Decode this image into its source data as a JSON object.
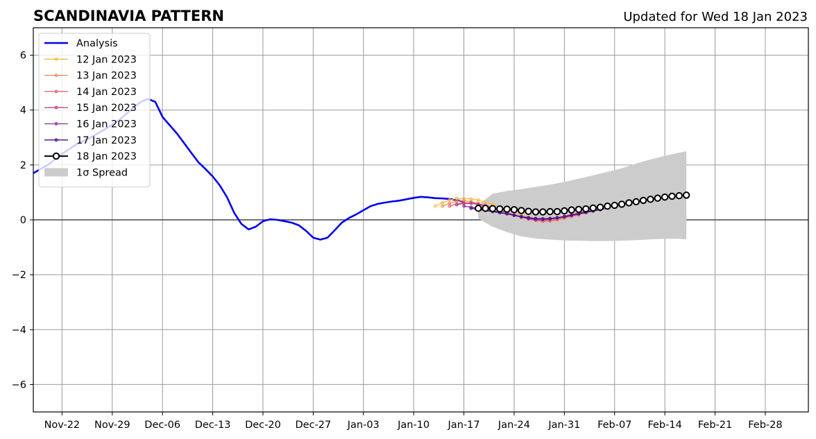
{
  "chart_data": {
    "type": "line",
    "title": "SCANDINAVIA PATTERN",
    "subtitle": "Updated for Wed 18 Jan 2023",
    "xlabel": "",
    "ylabel": "",
    "xlim": [
      "2022-11-18",
      "2023-03-06"
    ],
    "ylim": [
      -7,
      7
    ],
    "grid": true,
    "legend_position": "top-left",
    "x_tick_labels": [
      "Nov-22",
      "Nov-29",
      "Dec-06",
      "Dec-13",
      "Dec-20",
      "Dec-27",
      "Jan-03",
      "Jan-10",
      "Jan-17",
      "Jan-24",
      "Jan-31",
      "Feb-07",
      "Feb-14",
      "Feb-21",
      "Feb-28"
    ],
    "x_tick_dates": [
      "2022-11-22",
      "2022-11-29",
      "2022-12-06",
      "2022-12-13",
      "2022-12-20",
      "2022-12-27",
      "2023-01-03",
      "2023-01-10",
      "2023-01-17",
      "2023-01-24",
      "2023-01-31",
      "2023-02-07",
      "2023-02-14",
      "2023-02-21",
      "2023-02-28"
    ],
    "y_ticks": [
      -6,
      -4,
      -2,
      0,
      2,
      4,
      6
    ],
    "y_tick_labels": [
      "−6",
      "−4",
      "−2",
      "0",
      "2",
      "4",
      "6"
    ],
    "analysis": {
      "name": "Analysis",
      "color": "#0000ee",
      "x": [
        "2022-11-18",
        "2022-11-20",
        "2022-11-22",
        "2022-11-24",
        "2022-11-26",
        "2022-11-28",
        "2022-11-30",
        "2022-12-02",
        "2022-12-03",
        "2022-12-04",
        "2022-12-05",
        "2022-12-06",
        "2022-12-07",
        "2022-12-08",
        "2022-12-09",
        "2022-12-10",
        "2022-12-11",
        "2022-12-12",
        "2022-12-13",
        "2022-12-14",
        "2022-12-15",
        "2022-12-16",
        "2022-12-17",
        "2022-12-18",
        "2022-12-19",
        "2022-12-20",
        "2022-12-21",
        "2022-12-22",
        "2022-12-23",
        "2022-12-24",
        "2022-12-25",
        "2022-12-26",
        "2022-12-27",
        "2022-12-28",
        "2022-12-29",
        "2022-12-30",
        "2022-12-31",
        "2023-01-01",
        "2023-01-02",
        "2023-01-03",
        "2023-01-04",
        "2023-01-05",
        "2023-01-06",
        "2023-01-07",
        "2023-01-08",
        "2023-01-09",
        "2023-01-10",
        "2023-01-11",
        "2023-01-12",
        "2023-01-13",
        "2023-01-14",
        "2023-01-15",
        "2023-01-16",
        "2023-01-17"
      ],
      "y": [
        1.7,
        2.0,
        2.4,
        2.75,
        3.0,
        3.3,
        3.65,
        4.1,
        4.3,
        4.4,
        4.3,
        3.75,
        3.45,
        3.15,
        2.8,
        2.45,
        2.1,
        1.85,
        1.58,
        1.25,
        0.82,
        0.25,
        -0.15,
        -0.35,
        -0.25,
        -0.05,
        0.02,
        0.0,
        -0.05,
        -0.1,
        -0.2,
        -0.4,
        -0.65,
        -0.72,
        -0.65,
        -0.38,
        -0.1,
        0.07,
        0.2,
        0.35,
        0.5,
        0.58,
        0.63,
        0.67,
        0.7,
        0.75,
        0.8,
        0.84,
        0.82,
        0.79,
        0.78,
        0.76,
        0.72,
        0.65
      ]
    },
    "spread": {
      "name": "1σ Spread",
      "color": "#cccccc",
      "x": [
        "2023-01-19",
        "2023-01-21",
        "2023-01-23",
        "2023-01-25",
        "2023-01-27",
        "2023-01-29",
        "2023-01-31",
        "2023-02-02",
        "2023-02-04",
        "2023-02-06",
        "2023-02-08",
        "2023-02-10",
        "2023-02-12",
        "2023-02-14",
        "2023-02-16",
        "2023-02-17"
      ],
      "upper": [
        0.55,
        0.95,
        1.05,
        1.12,
        1.2,
        1.28,
        1.38,
        1.5,
        1.62,
        1.75,
        1.88,
        2.05,
        2.2,
        2.33,
        2.45,
        2.5
      ],
      "lower": [
        0.05,
        -0.25,
        -0.45,
        -0.6,
        -0.68,
        -0.72,
        -0.75,
        -0.76,
        -0.77,
        -0.77,
        -0.76,
        -0.74,
        -0.71,
        -0.69,
        -0.69,
        -0.72
      ]
    },
    "series": [
      {
        "name": "12 Jan 2023",
        "color": "#f5b942",
        "x": [
          "2023-01-13",
          "2023-01-14",
          "2023-01-15",
          "2023-01-16",
          "2023-01-17",
          "2023-01-18",
          "2023-01-19",
          "2023-01-20",
          "2023-01-21",
          "2023-01-22",
          "2023-01-23",
          "2023-01-24",
          "2023-01-25",
          "2023-01-26",
          "2023-01-27",
          "2023-01-28",
          "2023-01-29",
          "2023-01-30",
          "2023-01-31",
          "2023-02-01"
        ],
        "y": [
          0.5,
          0.62,
          0.72,
          0.78,
          0.78,
          0.76,
          0.72,
          0.64,
          0.56,
          0.46,
          0.36,
          0.26,
          0.18,
          0.1,
          0.04,
          0.0,
          0.0,
          0.04,
          0.1,
          0.16
        ]
      },
      {
        "name": "13 Jan 2023",
        "color": "#ef8a4a",
        "x": [
          "2023-01-14",
          "2023-01-15",
          "2023-01-16",
          "2023-01-17",
          "2023-01-18",
          "2023-01-19",
          "2023-01-20",
          "2023-01-21",
          "2023-01-22",
          "2023-01-23",
          "2023-01-24",
          "2023-01-25",
          "2023-01-26",
          "2023-01-27",
          "2023-01-28",
          "2023-01-29",
          "2023-01-30",
          "2023-01-31",
          "2023-02-01",
          "2023-02-02"
        ],
        "y": [
          0.5,
          0.6,
          0.68,
          0.7,
          0.66,
          0.6,
          0.52,
          0.44,
          0.35,
          0.26,
          0.18,
          0.1,
          0.03,
          -0.02,
          -0.05,
          -0.04,
          0.0,
          0.06,
          0.12,
          0.18
        ]
      },
      {
        "name": "14 Jan 2023",
        "color": "#e05a70",
        "x": [
          "2023-01-15",
          "2023-01-16",
          "2023-01-17",
          "2023-01-18",
          "2023-01-19",
          "2023-01-20",
          "2023-01-21",
          "2023-01-22",
          "2023-01-23",
          "2023-01-24",
          "2023-01-25",
          "2023-01-26",
          "2023-01-27",
          "2023-01-28",
          "2023-01-29",
          "2023-01-30",
          "2023-01-31",
          "2023-02-01",
          "2023-02-02",
          "2023-02-03"
        ],
        "y": [
          0.5,
          0.58,
          0.62,
          0.62,
          0.58,
          0.52,
          0.44,
          0.35,
          0.27,
          0.18,
          0.1,
          0.03,
          -0.02,
          -0.04,
          -0.03,
          0.02,
          0.08,
          0.14,
          0.2,
          0.26
        ]
      },
      {
        "name": "15 Jan 2023",
        "color": "#b8458a",
        "x": [
          "2023-01-16",
          "2023-01-17",
          "2023-01-18",
          "2023-01-19",
          "2023-01-20",
          "2023-01-21",
          "2023-01-22",
          "2023-01-23",
          "2023-01-24",
          "2023-01-25",
          "2023-01-26",
          "2023-01-27",
          "2023-01-28",
          "2023-01-29",
          "2023-01-30",
          "2023-01-31",
          "2023-02-01",
          "2023-02-02",
          "2023-02-03",
          "2023-02-04"
        ],
        "y": [
          0.55,
          0.6,
          0.6,
          0.56,
          0.5,
          0.42,
          0.34,
          0.26,
          0.18,
          0.11,
          0.05,
          0.01,
          0.0,
          0.02,
          0.07,
          0.13,
          0.19,
          0.25,
          0.31,
          0.36
        ]
      },
      {
        "name": "16 Jan 2023",
        "color": "#8a2a9a",
        "x": [
          "2023-01-17",
          "2023-01-18",
          "2023-01-19",
          "2023-01-20",
          "2023-01-21",
          "2023-01-22",
          "2023-01-23",
          "2023-01-24",
          "2023-01-25",
          "2023-01-26",
          "2023-01-27",
          "2023-01-28",
          "2023-01-29",
          "2023-01-30",
          "2023-01-31",
          "2023-02-01",
          "2023-02-02",
          "2023-02-03",
          "2023-02-04",
          "2023-02-05"
        ],
        "y": [
          0.5,
          0.46,
          0.42,
          0.38,
          0.33,
          0.28,
          0.22,
          0.16,
          0.1,
          0.05,
          0.02,
          0.01,
          0.03,
          0.07,
          0.12,
          0.17,
          0.23,
          0.29,
          0.34,
          0.39
        ]
      },
      {
        "name": "17 Jan 2023",
        "color": "#4a0a8a",
        "x": [
          "2023-01-18",
          "2023-01-19",
          "2023-01-20",
          "2023-01-21",
          "2023-01-22",
          "2023-01-23",
          "2023-01-24",
          "2023-01-25",
          "2023-01-26",
          "2023-01-27",
          "2023-01-28",
          "2023-01-29",
          "2023-01-30",
          "2023-01-31",
          "2023-02-01",
          "2023-02-02",
          "2023-02-03",
          "2023-02-04",
          "2023-02-05",
          "2023-02-06"
        ],
        "y": [
          0.42,
          0.38,
          0.34,
          0.3,
          0.26,
          0.22,
          0.17,
          0.12,
          0.08,
          0.05,
          0.04,
          0.05,
          0.08,
          0.12,
          0.17,
          0.22,
          0.27,
          0.32,
          0.37,
          0.43
        ]
      },
      {
        "name": "18 Jan 2023",
        "color": "#000000",
        "x": [
          "2023-01-19",
          "2023-01-20",
          "2023-01-21",
          "2023-01-22",
          "2023-01-23",
          "2023-01-24",
          "2023-01-25",
          "2023-01-26",
          "2023-01-27",
          "2023-01-28",
          "2023-01-29",
          "2023-01-30",
          "2023-01-31",
          "2023-02-01",
          "2023-02-02",
          "2023-02-03",
          "2023-02-04",
          "2023-02-05",
          "2023-02-06",
          "2023-02-07",
          "2023-02-08",
          "2023-02-09",
          "2023-02-10",
          "2023-02-11",
          "2023-02-12",
          "2023-02-13",
          "2023-02-14",
          "2023-02-15",
          "2023-02-16",
          "2023-02-17"
        ],
        "y": [
          0.42,
          0.42,
          0.41,
          0.4,
          0.39,
          0.37,
          0.34,
          0.31,
          0.29,
          0.29,
          0.3,
          0.3,
          0.33,
          0.36,
          0.38,
          0.4,
          0.43,
          0.46,
          0.5,
          0.53,
          0.57,
          0.62,
          0.66,
          0.71,
          0.75,
          0.79,
          0.83,
          0.86,
          0.88,
          0.9
        ]
      }
    ]
  }
}
